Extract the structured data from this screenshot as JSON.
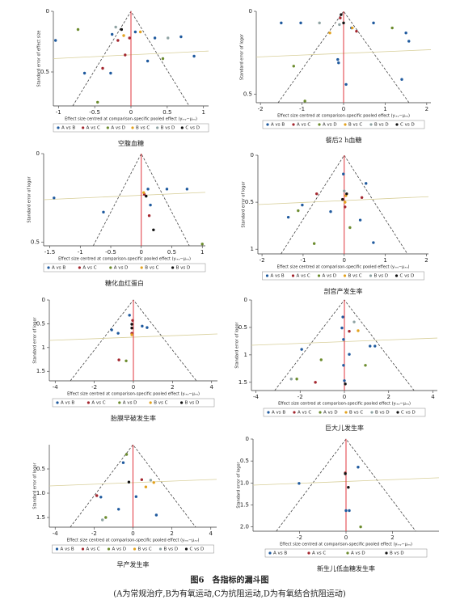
{
  "figure_title": "图6　各指标的漏斗图",
  "figure_note": "(A为常规治疗,B为有氧运动,C为抗阻运动,D为有氧结合抗阻运动)",
  "chart_data": [
    {
      "type": "scatter",
      "title": "空腹血糖",
      "xlabel": "Effect size centred at comparison-specific pooled effect (yᵢₓᵧ−μₓᵧ)",
      "ylabel": "Standard error of effect size",
      "xlim": [
        -1.07,
        1.07
      ],
      "ylim": [
        0,
        0.78
      ],
      "xticks": [
        -1,
        -0.5,
        0,
        0.5,
        1
      ],
      "yticks": [
        0,
        0.5
      ],
      "series": [
        {
          "name": "A vs B",
          "color": "#1f5a9e",
          "x": [
            -1.04,
            -0.26,
            0.06,
            0.23,
            0.87,
            -0.64,
            -0.28,
            0.33,
            0.69
          ],
          "values": [
            0.24,
            0.19,
            0.17,
            0.41,
            0.37,
            0.51,
            0.51,
            0.22,
            0.21
          ]
        },
        {
          "name": "A vs C",
          "color": "#a3262e",
          "x": [
            -0.18,
            -0.08,
            -0.02,
            -0.39
          ],
          "values": [
            0.24,
            0.36,
            0.22,
            0.47
          ]
        },
        {
          "name": "A vs D",
          "color": "#6c8c2e",
          "x": [
            -0.73,
            -0.46,
            0.44
          ],
          "values": [
            0.15,
            0.75,
            0.39
          ]
        },
        {
          "name": "B vs C",
          "color": "#e3a21e",
          "x": [
            0.13,
            -0.1
          ],
          "values": [
            0.17,
            0.2
          ]
        },
        {
          "name": "B vs D",
          "color": "#8fa3a3",
          "x": [
            0.51,
            -0.21
          ],
          "values": [
            0.22,
            0.13
          ]
        },
        {
          "name": "C vs D",
          "color": "#111111",
          "x": [
            -0.13
          ],
          "values": [
            0.15
          ]
        }
      ]
    },
    {
      "type": "scatter",
      "title": "餐后2 h血糖",
      "xlabel": "Effect size centred at comparison-specific pooled effect (yᵢₓᵧ−μₓᵧ)",
      "ylabel": "Standard error of logor",
      "xlim": [
        -2.1,
        2.1
      ],
      "ylim": [
        0,
        0.55
      ],
      "xticks": [
        -2,
        -1,
        0,
        1,
        2
      ],
      "yticks": [
        0,
        0.5
      ],
      "series": [
        {
          "name": "A vs B",
          "color": "#1f5a9e",
          "x": [
            -1.5,
            1.5,
            1.57,
            1.4,
            -0.14,
            -0.12,
            0.06,
            0.72,
            0.19,
            -1.03
          ],
          "values": [
            0.07,
            0.13,
            0.18,
            0.41,
            0.29,
            0.31,
            0.44,
            0.07,
            0.1,
            0.07
          ]
        },
        {
          "name": "A vs C",
          "color": "#a3262e",
          "x": [
            -0.08,
            0.31
          ],
          "values": [
            0.04,
            0.12
          ]
        },
        {
          "name": "A vs D",
          "color": "#6c8c2e",
          "x": [
            -1.2,
            -0.93,
            1.17
          ],
          "values": [
            0.33,
            0.54,
            0.1
          ]
        },
        {
          "name": "B vs C",
          "color": "#e3a21e",
          "x": [
            -0.33,
            0.21
          ],
          "values": [
            0.13,
            0.1
          ]
        },
        {
          "name": "B vs D",
          "color": "#8fa3a3",
          "x": [
            -0.58,
            -0.1
          ],
          "values": [
            0.07,
            0.08
          ]
        },
        {
          "name": "C vs D",
          "color": "#111111",
          "x": [
            0,
            -0.06
          ],
          "values": [
            0.07,
            0.02
          ]
        }
      ]
    },
    {
      "type": "scatter",
      "title": "糖化血红蛋白",
      "xlabel": "Effect size centred at comparison-specific pooled effect (yᵢₓᵧ−μₓᵧ)",
      "ylabel": "Standard error of logor",
      "xlim": [
        -1.6,
        1.05
      ],
      "ylim": [
        0,
        0.52
      ],
      "xticks": [
        -1.5,
        -1,
        -0.5,
        0,
        0.5,
        1
      ],
      "yticks": [
        0,
        0.5
      ],
      "series": [
        {
          "name": "A vs B",
          "color": "#1f5a9e",
          "x": [
            -1.43,
            -0.62,
            0.11,
            0.42,
            0.75,
            0.15
          ],
          "values": [
            0.25,
            0.33,
            0.2,
            0.2,
            0.2,
            0.29
          ]
        },
        {
          "name": "A vs C",
          "color": "#a3262e",
          "x": [
            0.05,
            0.13
          ],
          "values": [
            0.23,
            0.35
          ]
        },
        {
          "name": "A vs D",
          "color": "#6c8c2e",
          "x": [
            1
          ],
          "values": [
            0.51
          ]
        },
        {
          "name": "B vs C",
          "color": "#e3a21e",
          "x": [
            0.04
          ],
          "values": [
            0.22
          ]
        },
        {
          "name": "B vs D",
          "color": "#111111",
          "x": [
            0.08,
            0.2
          ],
          "values": [
            0.24,
            0.43
          ]
        }
      ]
    },
    {
      "type": "scatter",
      "title": "剖宫产发生率",
      "xlabel": "Effect size centred at comparison-specific pooled effect (yᵢₓᵧ−μₓᵧ)",
      "ylabel": "Standard error of logor",
      "xlim": [
        -2.1,
        2.05
      ],
      "ylim": [
        0,
        1.05
      ],
      "xticks": [
        -2,
        -1,
        0,
        1,
        2
      ],
      "yticks": [
        0,
        0.5,
        1
      ],
      "series": [
        {
          "name": "A vs B",
          "color": "#1f5a9e",
          "x": [
            -1.36,
            -1.02,
            -0.33,
            0.53,
            0.39,
            0.71,
            -0.02
          ],
          "values": [
            0.66,
            0.53,
            0.6,
            0.3,
            0.69,
            0.93,
            0.2
          ]
        },
        {
          "name": "A vs C",
          "color": "#a3262e",
          "x": [
            0.43,
            -0.67,
            0.02
          ],
          "values": [
            0.45,
            0.41,
            0.55
          ]
        },
        {
          "name": "A vs D",
          "color": "#6c8c2e",
          "x": [
            -1.12,
            -0.73,
            0.14
          ],
          "values": [
            0.59,
            0.94,
            0.77
          ]
        },
        {
          "name": "B vs C",
          "color": "#e3a21e",
          "x": [
            0.04,
            0.02
          ],
          "values": [
            0.43,
            0.5
          ]
        },
        {
          "name": "B vs D",
          "color": "#8fa3a3",
          "x": [
            0
          ],
          "values": [
            0.38
          ]
        },
        {
          "name": "C vs D",
          "color": "#111111",
          "x": [
            -0.04,
            0.06
          ],
          "values": [
            0.47,
            0.41
          ]
        }
      ]
    },
    {
      "type": "scatter",
      "title": "胎膜早破发生率",
      "xlabel": "Effect size centred at comparison-specific pooled effect (yᵢₓᵧ−μₓᵧ)",
      "ylabel": "Standard error of logor",
      "xlim": [
        -4.3,
        4.3
      ],
      "ylim": [
        0,
        1.7
      ],
      "xticks": [
        -4,
        -2,
        0,
        2,
        4
      ],
      "yticks": [
        0,
        0.5,
        1,
        1.5
      ],
      "series": [
        {
          "name": "A vs B",
          "color": "#1f5a9e",
          "x": [
            -1.11,
            -0.78,
            0.45,
            0.7,
            -0.2
          ],
          "values": [
            0.63,
            0.7,
            0.55,
            0.58,
            0.32
          ]
        },
        {
          "name": "A vs C",
          "color": "#a3262e",
          "x": [
            -0.74,
            -0.08,
            -0.04
          ],
          "values": [
            1.26,
            0.7,
            0.43
          ]
        },
        {
          "name": "A vs D",
          "color": "#6c8c2e",
          "x": [
            -0.37
          ],
          "values": [
            1.28
          ]
        },
        {
          "name": "B vs C",
          "color": "#e3a21e",
          "x": [
            -0.08
          ],
          "values": [
            0.73
          ]
        },
        {
          "name": "B vs D",
          "color": "#111111",
          "x": [
            -0.08,
            -0.08
          ],
          "values": [
            0.51,
            0.59
          ]
        }
      ]
    },
    {
      "type": "scatter",
      "title": "巨大儿发生率",
      "xlabel": "Effect size centred at comparison-specific pooled effect (yᵢₓᵧ−μₓᵧ)",
      "ylabel": "Standard error of logor",
      "xlim": [
        -4.2,
        4.2
      ],
      "ylim": [
        0,
        1.65
      ],
      "xticks": [
        -4,
        -2,
        0,
        2,
        4
      ],
      "yticks": [
        0,
        0.5,
        1,
        1.5
      ],
      "series": [
        {
          "name": "A vs B",
          "color": "#1f5a9e",
          "x": [
            -0.07,
            -0.11,
            -0.04,
            0.22,
            1.16,
            1.38,
            -0.04,
            0,
            -1.93
          ],
          "values": [
            0.31,
            0.51,
            0.72,
            0.99,
            0.84,
            0.84,
            1.19,
            1.47,
            0.9
          ]
        },
        {
          "name": "A vs C",
          "color": "#a3262e",
          "x": [
            -1.31,
            0.22
          ],
          "values": [
            1.5,
            0.57
          ]
        },
        {
          "name": "A vs D",
          "color": "#6c8c2e",
          "x": [
            -1.05,
            0.95,
            -2.15
          ],
          "values": [
            1.09,
            1.19,
            1.44
          ]
        },
        {
          "name": "B vs C",
          "color": "#e3a21e",
          "x": [
            0.62
          ],
          "values": [
            0.56
          ]
        },
        {
          "name": "B vs D",
          "color": "#8fa3a3",
          "x": [
            0.44,
            -2.4
          ],
          "values": [
            0.4,
            1.44
          ]
        },
        {
          "name": "C vs D",
          "color": "#111111",
          "x": [
            0.04
          ],
          "values": [
            1.53
          ]
        }
      ]
    },
    {
      "type": "scatter",
      "title": "早产发生率",
      "xlabel": "Effect size centred at comparison-specific pooled effect (yᵢₓᵧ−μₓᵧ)",
      "ylabel": "Standard error of logor",
      "xlim": [
        -4.3,
        4.3
      ],
      "ylim": [
        0,
        1.7
      ],
      "xticks": [
        -4,
        -2,
        0,
        2,
        4
      ],
      "yticks": [
        0.5,
        {
          "value": 1,
          "label": "1.0"
        },
        1.5
      ],
      "series": [
        {
          "name": "A vs B",
          "color": "#1f5a9e",
          "x": [
            -0.5,
            -1.65,
            1.2,
            0.16,
            -0.74
          ],
          "values": [
            0.37,
            1.08,
            1.45,
            1.07,
            1.33
          ]
        },
        {
          "name": "A vs C",
          "color": "#a3262e",
          "x": [
            -1.86,
            0.45
          ],
          "values": [
            1.05,
            0.72
          ]
        },
        {
          "name": "A vs D",
          "color": "#6c8c2e",
          "x": [
            -0.33,
            -1.4
          ],
          "values": [
            0.2,
            1.5
          ]
        },
        {
          "name": "B vs C",
          "color": "#e3a21e",
          "x": [
            1.07,
            0.66
          ],
          "values": [
            0.78,
            0.87
          ]
        },
        {
          "name": "B vs D",
          "color": "#8fa3a3",
          "x": [
            0.91,
            -1.57
          ],
          "values": [
            0.73,
            1.55
          ]
        },
        {
          "name": "C vs D",
          "color": "#111111",
          "x": [
            -0.21
          ],
          "values": [
            0.77
          ]
        }
      ]
    },
    {
      "type": "scatter",
      "title": "新生儿低血糖发生率",
      "xlabel": "Effect size centred at comparison-specific pooled effect (yᵢₓᵧ−μₓᵧ)",
      "ylabel": "Standard error of logor",
      "xlim": [
        -4,
        4
      ],
      "ylim": [
        0,
        2.1
      ],
      "xticks": [
        -2,
        0,
        2
      ],
      "yticks": [
        0,
        0.5,
        {
          "value": 1,
          "label": "1.0"
        },
        1.5,
        {
          "value": 2,
          "label": "2.0"
        }
      ],
      "series": [
        {
          "name": "A vs B",
          "color": "#1f5a9e",
          "x": [
            -2.02,
            0.52,
            0,
            0.14
          ],
          "values": [
            1.01,
            0.64,
            1.63,
            1.63
          ]
        },
        {
          "name": "A vs C",
          "color": "#a3262e",
          "x": [
            -0.03
          ],
          "values": [
            0.77
          ]
        },
        {
          "name": "A vs D",
          "color": "#6c8c2e",
          "x": [
            0.63
          ],
          "values": [
            2
          ]
        },
        {
          "name": "B vs D",
          "color": "#111111",
          "x": [
            -0.03,
            0.1
          ],
          "values": [
            0.79,
            1.1
          ]
        }
      ]
    }
  ]
}
